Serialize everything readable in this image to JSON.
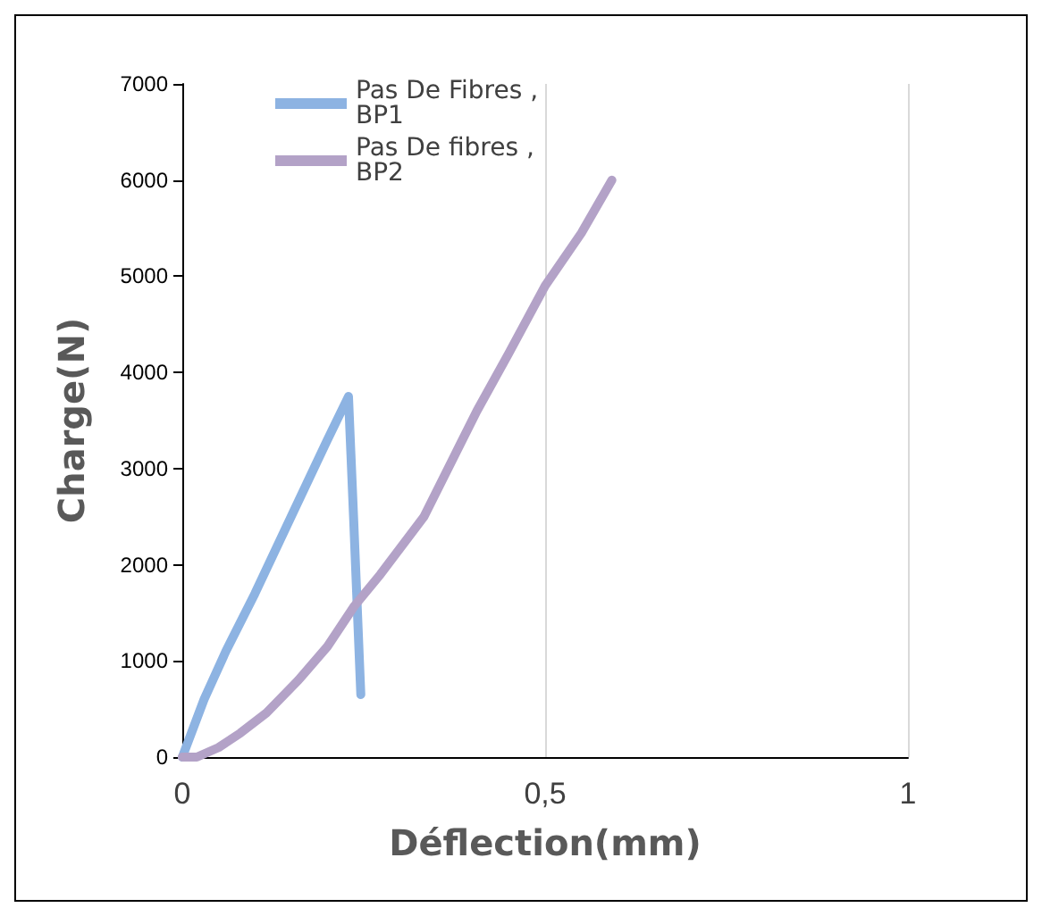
{
  "chart_data": {
    "type": "line",
    "xlabel": "Déflection(mm)",
    "ylabel": "Charge(N)",
    "xlim": [
      0,
      1
    ],
    "xticks": [
      0,
      {
        "value": 0.5,
        "label": "0,5"
      },
      1
    ],
    "ylim": [
      0,
      7000
    ],
    "yticks": [
      0,
      1000,
      2000,
      3000,
      4000,
      5000,
      6000,
      7000
    ],
    "grid": "x",
    "legend": "top left",
    "marker": "none",
    "line_style": "solid",
    "series": [
      {
        "name": "Pas De Fibres ,BP1",
        "color": "#8db3e2",
        "x": [
          0,
          0.03,
          0.06,
          0.1,
          0.15,
          0.2,
          0.229,
          0.236,
          0.246
        ],
        "values": [
          0,
          600,
          1100,
          1700,
          2500,
          3300,
          3750,
          2500,
          650
        ]
      },
      {
        "name": "Pas De fibres ,BP2",
        "color": "#b3a2c7",
        "x": [
          0,
          0.02,
          0.05,
          0.08,
          0.116,
          0.16,
          0.2,
          0.237,
          0.273,
          0.333,
          0.406,
          0.45,
          0.5,
          0.55,
          0.592
        ],
        "values": [
          0,
          0,
          100,
          250,
          460,
          800,
          1150,
          1570,
          1900,
          2500,
          3600,
          4200,
          4900,
          5450,
          6000
        ]
      }
    ]
  }
}
